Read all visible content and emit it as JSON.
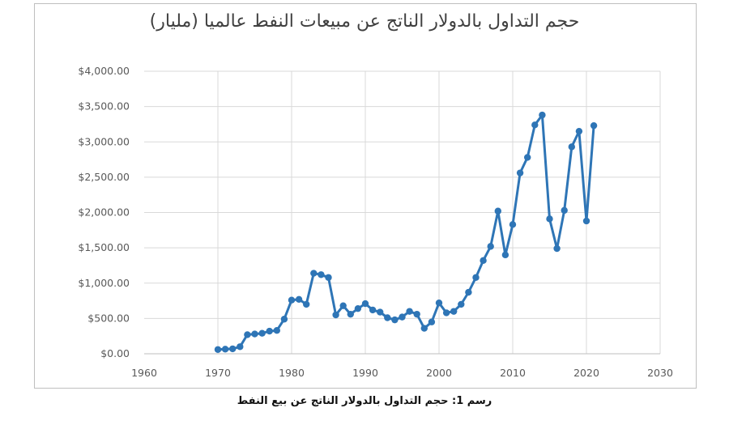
{
  "chart_data": {
    "type": "line",
    "title": "حجم التداول بالدولار الناتج عن مبيعات النفط عالميا (مليار)",
    "caption": "رسم 1: حجم التداول بالدولار الناتج عن بيع النفط",
    "xlabel": "",
    "ylabel": "",
    "xlim": [
      1960,
      2030
    ],
    "ylim": [
      0,
      4000
    ],
    "x_ticks": [
      1960,
      1970,
      1980,
      1990,
      2000,
      2010,
      2020,
      2030
    ],
    "x_tick_labels": [
      "1960",
      "1970",
      "1980",
      "1990",
      "2000",
      "2010",
      "2020",
      "2030"
    ],
    "y_ticks": [
      0,
      500,
      1000,
      1500,
      2000,
      2500,
      3000,
      3500,
      4000
    ],
    "y_tick_labels": [
      "$0.00",
      "$500.00",
      "$1,000.00",
      "$1,500.00",
      "$2,000.00",
      "$2,500.00",
      "$3,000.00",
      "$3,500.00",
      "$4,000.00"
    ],
    "grid": {
      "x": true,
      "y": true
    },
    "legend": "none",
    "series_color": "#2e75b6",
    "grid_color": "#d9d9d9",
    "series": [
      {
        "x": [
          1970,
          1971,
          1972,
          1973,
          1974,
          1975,
          1976,
          1977,
          1978,
          1979,
          1980,
          1981,
          1982,
          1983,
          1984,
          1985,
          1986,
          1987,
          1988,
          1989,
          1990,
          1991,
          1992,
          1993,
          1994,
          1995,
          1996,
          1997,
          1998,
          1999,
          2000,
          2001,
          2002,
          2003,
          2004,
          2005,
          2006,
          2007,
          2008,
          2009,
          2010,
          2011,
          2012,
          2013,
          2014,
          2015,
          2016,
          2017,
          2018,
          2019,
          2020,
          2021
        ],
        "values": [
          60,
          65,
          70,
          100,
          270,
          280,
          290,
          320,
          330,
          490,
          760,
          770,
          700,
          1140,
          1120,
          1080,
          550,
          680,
          560,
          640,
          710,
          620,
          590,
          510,
          480,
          520,
          600,
          560,
          360,
          450,
          720,
          580,
          600,
          700,
          870,
          1080,
          1320,
          1520,
          2020,
          1400,
          1830,
          2560,
          2780,
          3240,
          3380,
          1910,
          1490,
          2030,
          2930,
          3150,
          1880,
          3230
        ]
      }
    ]
  }
}
